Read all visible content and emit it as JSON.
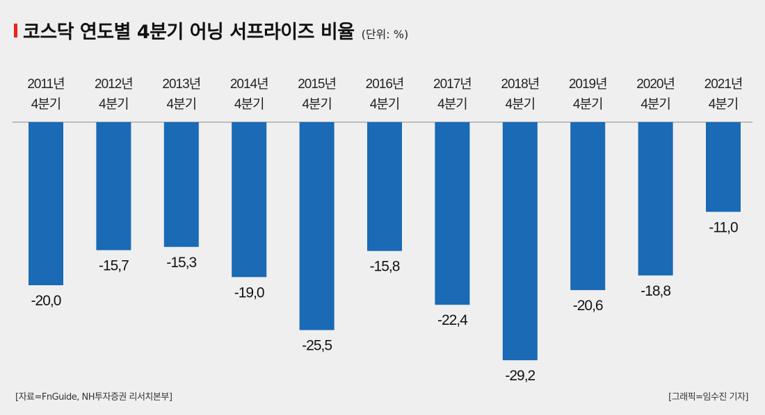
{
  "chart_data": {
    "type": "bar",
    "title": "코스닥 연도별 4분기 어닝 서프라이즈 비율",
    "unit": "(단위: %)",
    "categories": [
      "2011년|4분기",
      "2012년|4분기",
      "2013년|4분기",
      "2014년|4분기",
      "2015년|4분기",
      "2016년|4분기",
      "2017년|4분기",
      "2018년|4분기",
      "2019년|4분기",
      "2020년|4분기",
      "2021년|4분기"
    ],
    "values": [
      -20.0,
      -15.7,
      -15.3,
      -19.0,
      -25.5,
      -15.8,
      -22.4,
      -29.2,
      -20.6,
      -18.8,
      -11.0
    ],
    "ylim": [
      -30,
      0
    ],
    "bar_color": "#1a6ab5",
    "accent_color": "#e8261d",
    "grid": false
  },
  "footer": {
    "source": "[자료=FnGuide, NH투자증권 리서치본부]",
    "credit": "[그래픽=임수진 기자]"
  }
}
